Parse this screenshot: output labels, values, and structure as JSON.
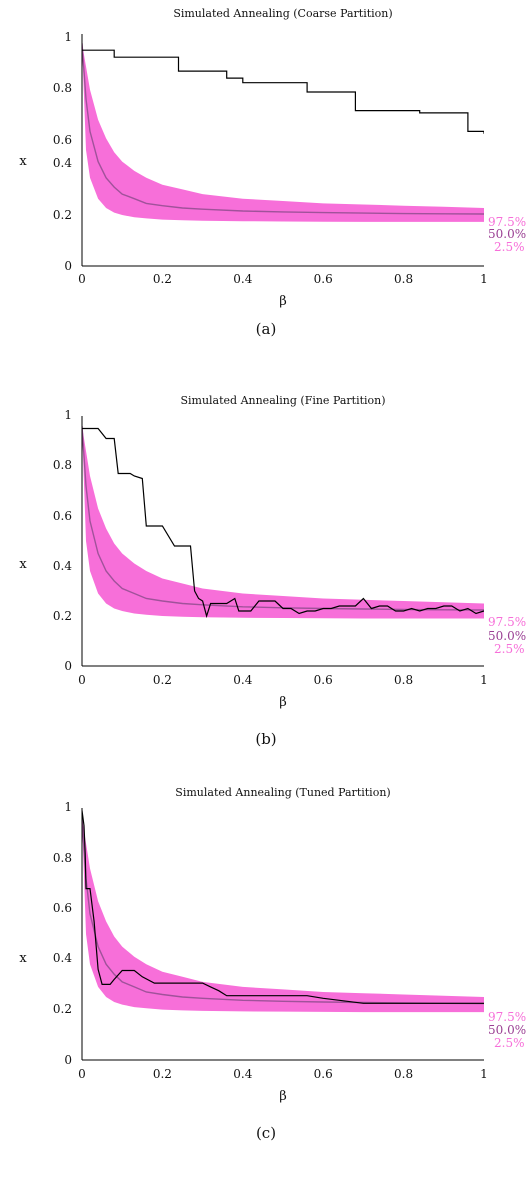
{
  "colors": {
    "band": "#f76fd9",
    "median": "#a0529a",
    "path": "#000000",
    "quantile_label": "#f76fd9",
    "median_label": "#9a3f93"
  },
  "chart_data": [
    {
      "type": "line",
      "title": "Simulated Annealing (Coarse Partition)",
      "caption": "(a)",
      "xlabel": "β",
      "ylabel": "x",
      "xlim": [
        0,
        1
      ],
      "ylim": [
        0,
        1
      ],
      "xticks": [
        "0",
        "0.2",
        "0.4",
        "0.6",
        "0.8",
        "1"
      ],
      "yticks": [
        "0",
        "0.2",
        "0.4",
        "0.6",
        "0.8",
        "1"
      ],
      "grid": false,
      "quantile_labels": [
        "97.5%",
        "50.0%",
        "2.5%"
      ],
      "band_x": [
        0,
        0.01,
        0.02,
        0.04,
        0.06,
        0.08,
        0.1,
        0.13,
        0.16,
        0.2,
        0.25,
        0.3,
        0.4,
        0.5,
        0.6,
        0.7,
        0.8,
        0.9,
        1.0
      ],
      "band_upper": [
        0.96,
        0.86,
        0.76,
        0.63,
        0.55,
        0.49,
        0.45,
        0.41,
        0.38,
        0.35,
        0.33,
        0.31,
        0.29,
        0.28,
        0.27,
        0.265,
        0.26,
        0.255,
        0.25
      ],
      "band_median": [
        0.96,
        0.72,
        0.58,
        0.45,
        0.38,
        0.34,
        0.31,
        0.29,
        0.27,
        0.26,
        0.25,
        0.245,
        0.237,
        0.233,
        0.23,
        0.228,
        0.226,
        0.225,
        0.224
      ],
      "band_lower": [
        0.96,
        0.5,
        0.38,
        0.29,
        0.25,
        0.23,
        0.22,
        0.21,
        0.205,
        0.2,
        0.197,
        0.195,
        0.193,
        0.192,
        0.191,
        0.19,
        0.19,
        0.19,
        0.19
      ],
      "series": [
        {
          "x": [
            0,
            0.04,
            0.08,
            0.12,
            0.16,
            0.2,
            0.24,
            0.28,
            0.32,
            0.36,
            0.4,
            0.44,
            0.48,
            0.52,
            0.56,
            0.6,
            0.64,
            0.68,
            0.72,
            0.76,
            0.8,
            0.84,
            0.88,
            0.92,
            0.96,
            1.0
          ],
          "y": [
            0.93,
            0.93,
            0.9,
            0.9,
            0.9,
            0.9,
            0.84,
            0.84,
            0.84,
            0.81,
            0.79,
            0.79,
            0.79,
            0.79,
            0.75,
            0.75,
            0.75,
            0.67,
            0.67,
            0.67,
            0.67,
            0.66,
            0.66,
            0.66,
            0.58,
            0.57
          ],
          "step": true
        }
      ]
    },
    {
      "type": "line",
      "title": "Simulated Annealing (Fine Partition)",
      "caption": "(b)",
      "xlabel": "β",
      "ylabel": "x",
      "xlim": [
        0,
        1
      ],
      "ylim": [
        0,
        1
      ],
      "xticks": [
        "0",
        "0.2",
        "0.4",
        "0.6",
        "0.8",
        "1"
      ],
      "yticks": [
        "0",
        "0.2",
        "0.4",
        "0.6",
        "0.8",
        "1"
      ],
      "grid": false,
      "quantile_labels": [
        "97.5%",
        "50.0%",
        "2.5%"
      ],
      "band_x": [
        0,
        0.01,
        0.02,
        0.04,
        0.06,
        0.08,
        0.1,
        0.13,
        0.16,
        0.2,
        0.25,
        0.3,
        0.4,
        0.5,
        0.6,
        0.7,
        0.8,
        0.9,
        1.0
      ],
      "band_upper": [
        0.96,
        0.86,
        0.76,
        0.63,
        0.55,
        0.49,
        0.45,
        0.41,
        0.38,
        0.35,
        0.33,
        0.31,
        0.29,
        0.28,
        0.27,
        0.265,
        0.26,
        0.255,
        0.25
      ],
      "band_median": [
        0.96,
        0.72,
        0.58,
        0.45,
        0.38,
        0.34,
        0.31,
        0.29,
        0.27,
        0.26,
        0.25,
        0.245,
        0.237,
        0.233,
        0.23,
        0.228,
        0.226,
        0.225,
        0.224
      ],
      "band_lower": [
        0.96,
        0.5,
        0.38,
        0.29,
        0.25,
        0.23,
        0.22,
        0.21,
        0.205,
        0.2,
        0.197,
        0.195,
        0.193,
        0.192,
        0.191,
        0.19,
        0.19,
        0.19,
        0.19
      ],
      "series": [
        {
          "x": [
            0,
            0.03,
            0.04,
            0.06,
            0.08,
            0.09,
            0.12,
            0.13,
            0.15,
            0.16,
            0.19,
            0.2,
            0.23,
            0.24,
            0.27,
            0.28,
            0.29,
            0.3,
            0.31,
            0.32,
            0.34,
            0.36,
            0.38,
            0.39,
            0.4,
            0.42,
            0.44,
            0.46,
            0.48,
            0.5,
            0.52,
            0.54,
            0.56,
            0.58,
            0.6,
            0.62,
            0.64,
            0.66,
            0.68,
            0.7,
            0.72,
            0.74,
            0.76,
            0.78,
            0.8,
            0.82,
            0.84,
            0.86,
            0.88,
            0.9,
            0.92,
            0.94,
            0.96,
            0.98,
            1.0
          ],
          "y": [
            0.95,
            0.95,
            0.95,
            0.91,
            0.91,
            0.77,
            0.77,
            0.76,
            0.75,
            0.56,
            0.56,
            0.56,
            0.48,
            0.48,
            0.48,
            0.3,
            0.27,
            0.26,
            0.2,
            0.25,
            0.25,
            0.25,
            0.27,
            0.22,
            0.22,
            0.22,
            0.26,
            0.26,
            0.26,
            0.23,
            0.23,
            0.21,
            0.22,
            0.22,
            0.23,
            0.23,
            0.24,
            0.24,
            0.24,
            0.27,
            0.23,
            0.24,
            0.24,
            0.22,
            0.22,
            0.23,
            0.22,
            0.23,
            0.23,
            0.24,
            0.24,
            0.22,
            0.23,
            0.21,
            0.22
          ],
          "step": false
        }
      ]
    },
    {
      "type": "line",
      "title": "Simulated Annealing (Tuned Partition)",
      "caption": "(c)",
      "xlabel": "β",
      "ylabel": "x",
      "xlim": [
        0,
        1
      ],
      "ylim": [
        0,
        1
      ],
      "xticks": [
        "0",
        "0.2",
        "0.4",
        "0.6",
        "0.8",
        "1"
      ],
      "yticks": [
        "0",
        "0.2",
        "0.4",
        "0.6",
        "0.8",
        "1"
      ],
      "grid": false,
      "quantile_labels": [
        "97.5%",
        "50.0%",
        "2.5%"
      ],
      "band_x": [
        0,
        0.01,
        0.02,
        0.04,
        0.06,
        0.08,
        0.1,
        0.13,
        0.16,
        0.2,
        0.25,
        0.3,
        0.4,
        0.5,
        0.6,
        0.7,
        0.8,
        0.9,
        1.0
      ],
      "band_upper": [
        0.96,
        0.86,
        0.76,
        0.63,
        0.55,
        0.49,
        0.45,
        0.41,
        0.38,
        0.35,
        0.33,
        0.31,
        0.29,
        0.28,
        0.27,
        0.265,
        0.26,
        0.255,
        0.25
      ],
      "band_median": [
        0.96,
        0.72,
        0.58,
        0.45,
        0.38,
        0.34,
        0.31,
        0.29,
        0.27,
        0.26,
        0.25,
        0.245,
        0.237,
        0.233,
        0.23,
        0.228,
        0.226,
        0.225,
        0.224
      ],
      "band_lower": [
        0.96,
        0.5,
        0.38,
        0.29,
        0.25,
        0.23,
        0.22,
        0.21,
        0.205,
        0.2,
        0.197,
        0.195,
        0.193,
        0.192,
        0.191,
        0.19,
        0.19,
        0.19,
        0.19
      ],
      "series": [
        {
          "x": [
            0,
            0.005,
            0.008,
            0.01,
            0.02,
            0.03,
            0.04,
            0.05,
            0.07,
            0.08,
            0.1,
            0.13,
            0.15,
            0.18,
            0.3,
            0.32,
            0.34,
            0.36,
            0.4,
            0.5,
            0.56,
            0.6,
            0.7,
            1.0
          ],
          "y": [
            0.99,
            0.93,
            0.82,
            0.68,
            0.68,
            0.55,
            0.36,
            0.3,
            0.3,
            0.32,
            0.355,
            0.355,
            0.33,
            0.305,
            0.305,
            0.29,
            0.275,
            0.255,
            0.255,
            0.255,
            0.255,
            0.245,
            0.225,
            0.225
          ],
          "step": false
        }
      ]
    }
  ]
}
